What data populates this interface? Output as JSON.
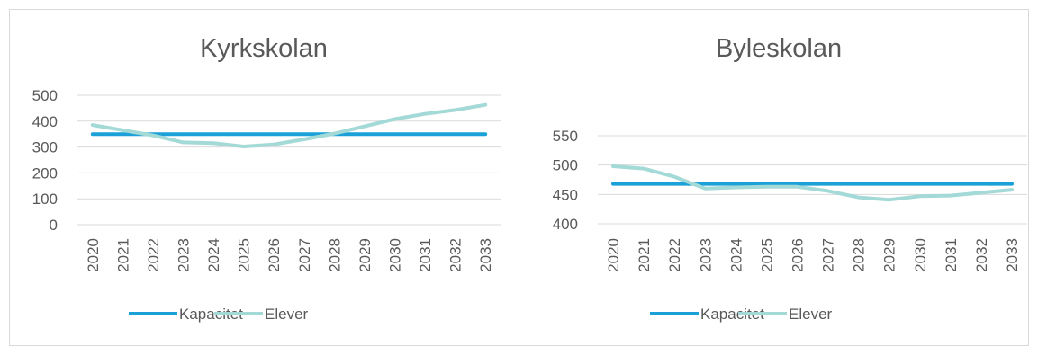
{
  "colors": {
    "kapacitet": "#1BA1D8",
    "elever": "#A3D9D6",
    "grid": "#d9d9d9",
    "text": "#595959",
    "border": "#d9d9d9"
  },
  "chart_data": [
    {
      "type": "line",
      "title": "Kyrkskolan",
      "categories": [
        "2020",
        "2021",
        "2022",
        "2023",
        "2024",
        "2025",
        "2026",
        "2027",
        "2028",
        "2029",
        "2030",
        "2031",
        "2032",
        "2033"
      ],
      "yticks": [
        0,
        100,
        200,
        300,
        400,
        500
      ],
      "ylim": [
        0,
        500
      ],
      "grid": true,
      "legend": "bottom",
      "series": [
        {
          "name": "Kapacitet",
          "color": "#1BA1D8",
          "values": [
            350,
            350,
            350,
            350,
            350,
            350,
            350,
            350,
            350,
            350,
            350,
            350,
            350,
            350
          ]
        },
        {
          "name": "Elever",
          "color": "#A3D9D6",
          "values": [
            385,
            365,
            345,
            318,
            315,
            302,
            310,
            330,
            352,
            380,
            408,
            428,
            443,
            463
          ]
        }
      ]
    },
    {
      "type": "line",
      "title": "Byleskolan",
      "categories": [
        "2020",
        "2021",
        "2022",
        "2023",
        "2024",
        "2025",
        "2026",
        "2027",
        "2028",
        "2029",
        "2030",
        "2031",
        "2032",
        "2033"
      ],
      "yticks": [
        400,
        450,
        500,
        550
      ],
      "ylim": [
        400,
        550
      ],
      "grid": true,
      "legend": "bottom",
      "series": [
        {
          "name": "Kapacitet",
          "color": "#1BA1D8",
          "values": [
            468,
            468,
            468,
            468,
            468,
            468,
            468,
            468,
            468,
            468,
            468,
            468,
            468,
            468
          ]
        },
        {
          "name": "Elever",
          "color": "#A3D9D6",
          "values": [
            498,
            494,
            480,
            460,
            462,
            463,
            463,
            456,
            445,
            441,
            447,
            448,
            453,
            458
          ]
        }
      ]
    }
  ]
}
